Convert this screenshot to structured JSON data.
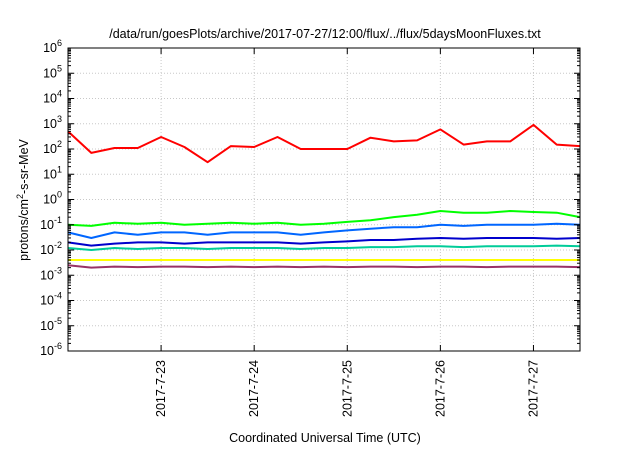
{
  "chart_data": {
    "type": "line",
    "title": "/data/run/goesPlots/archive/2017-07-27/12:00/flux/../flux/5daysMoonFluxes.txt",
    "xlabel": "Coordinated Universal Time (UTC)",
    "ylabel": "protons/cm2-s-sr-MeV",
    "ylabel_parts": {
      "before": "protons/cm",
      "sup": "2",
      "after": "-s-sr-MeV"
    },
    "y_scale": "log",
    "ylim": [
      1e-06,
      1000000.0
    ],
    "xlim": [
      "2017-07-22 00:00",
      "2017-07-27 12:00"
    ],
    "grid": true,
    "legend": "none",
    "y_ticks": [
      {
        "value": 1e-06,
        "base": "10",
        "exp": "-6"
      },
      {
        "value": 1e-05,
        "base": "10",
        "exp": "-5"
      },
      {
        "value": 0.0001,
        "base": "10",
        "exp": "-4"
      },
      {
        "value": 0.001,
        "base": "10",
        "exp": "-3"
      },
      {
        "value": 0.01,
        "base": "10",
        "exp": "-2"
      },
      {
        "value": 0.1,
        "base": "10",
        "exp": "-1"
      },
      {
        "value": 1,
        "base": "10",
        "exp": "0"
      },
      {
        "value": 10.0,
        "base": "10",
        "exp": "1"
      },
      {
        "value": 100.0,
        "base": "10",
        "exp": "2"
      },
      {
        "value": 1000.0,
        "base": "10",
        "exp": "3"
      },
      {
        "value": 10000.0,
        "base": "10",
        "exp": "4"
      },
      {
        "value": 100000.0,
        "base": "10",
        "exp": "5"
      },
      {
        "value": 1000000.0,
        "base": "10",
        "exp": "6"
      }
    ],
    "x_ticks": [
      {
        "value": "2017-07-23 00:00",
        "label": "2017-7-23"
      },
      {
        "value": "2017-07-24 00:00",
        "label": "2017-7-24"
      },
      {
        "value": "2017-07-25 00:00",
        "label": "2017-7-25"
      },
      {
        "value": "2017-07-26 00:00",
        "label": "2017-7-26"
      },
      {
        "value": "2017-07-27 00:00",
        "label": "2017-7-27"
      }
    ],
    "x": [
      "2017-07-22 00:00",
      "2017-07-22 06:00",
      "2017-07-22 12:00",
      "2017-07-22 18:00",
      "2017-07-23 00:00",
      "2017-07-23 06:00",
      "2017-07-23 12:00",
      "2017-07-23 18:00",
      "2017-07-24 00:00",
      "2017-07-24 06:00",
      "2017-07-24 12:00",
      "2017-07-24 18:00",
      "2017-07-25 00:00",
      "2017-07-25 06:00",
      "2017-07-25 12:00",
      "2017-07-25 18:00",
      "2017-07-26 00:00",
      "2017-07-26 06:00",
      "2017-07-26 12:00",
      "2017-07-26 18:00",
      "2017-07-27 00:00",
      "2017-07-27 06:00",
      "2017-07-27 12:00"
    ],
    "series": [
      {
        "color": "#ff0000",
        "values": [
          500,
          70,
          110,
          110,
          300,
          120,
          30,
          130,
          120,
          300,
          100,
          100,
          100,
          280,
          200,
          220,
          600,
          150,
          200,
          200,
          900,
          150,
          130
        ]
      },
      {
        "color": "#00ff00",
        "values": [
          0.1,
          0.09,
          0.12,
          0.11,
          0.12,
          0.1,
          0.11,
          0.12,
          0.11,
          0.12,
          0.1,
          0.11,
          0.13,
          0.15,
          0.2,
          0.25,
          0.35,
          0.3,
          0.3,
          0.35,
          0.32,
          0.3,
          0.2
        ]
      },
      {
        "color": "#0066ff",
        "values": [
          0.05,
          0.03,
          0.05,
          0.04,
          0.05,
          0.05,
          0.04,
          0.05,
          0.05,
          0.05,
          0.04,
          0.05,
          0.06,
          0.07,
          0.08,
          0.08,
          0.1,
          0.09,
          0.1,
          0.1,
          0.1,
          0.11,
          0.1
        ]
      },
      {
        "color": "#00cc99",
        "values": [
          0.012,
          0.01,
          0.012,
          0.011,
          0.012,
          0.012,
          0.011,
          0.012,
          0.012,
          0.012,
          0.011,
          0.012,
          0.012,
          0.013,
          0.013,
          0.014,
          0.014,
          0.013,
          0.014,
          0.014,
          0.014,
          0.015,
          0.014
        ]
      },
      {
        "color": "#0000cc",
        "values": [
          0.02,
          0.015,
          0.018,
          0.02,
          0.02,
          0.018,
          0.02,
          0.02,
          0.02,
          0.02,
          0.018,
          0.02,
          0.022,
          0.025,
          0.025,
          0.028,
          0.03,
          0.028,
          0.03,
          0.03,
          0.03,
          0.028,
          0.03
        ]
      },
      {
        "color": "#ffff00",
        "values": [
          0.004,
          0.004,
          0.004,
          0.004,
          0.004,
          0.004,
          0.004,
          0.004,
          0.004,
          0.004,
          0.004,
          0.004,
          0.004,
          0.004,
          0.004,
          0.004,
          0.004,
          0.004,
          0.004,
          0.004,
          0.004,
          0.004,
          0.004
        ]
      },
      {
        "color": "#993366",
        "values": [
          0.0025,
          0.002,
          0.0022,
          0.0021,
          0.0022,
          0.0022,
          0.0021,
          0.0022,
          0.0021,
          0.0022,
          0.0021,
          0.0022,
          0.0021,
          0.0022,
          0.0022,
          0.0021,
          0.0022,
          0.0022,
          0.0021,
          0.0022,
          0.0022,
          0.0022,
          0.0021
        ]
      }
    ]
  }
}
